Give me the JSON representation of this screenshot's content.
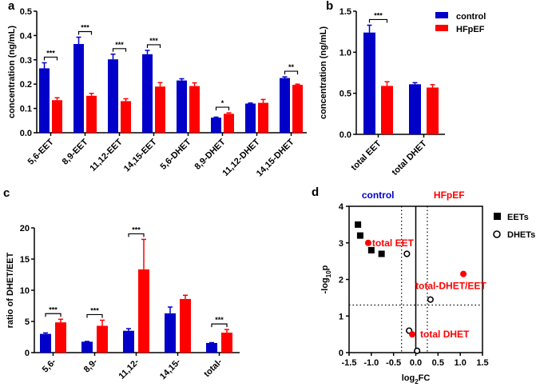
{
  "colors": {
    "control": "#0000c8",
    "HFpEF": "#ff0000",
    "EETs": "#000000",
    "DHETs": "#000000",
    "highlight": "#ff0000"
  },
  "legend": {
    "control": "control",
    "HFpEF": "HFpEF"
  },
  "chart_data": [
    {
      "id": "a",
      "panel_label": "a",
      "type": "bar",
      "ylabel": "concentration (ng/mL)",
      "ylim": [
        0,
        0.5
      ],
      "yticks": [
        "0.0",
        "0.1",
        "0.2",
        "0.3",
        "0.4",
        "0.5"
      ],
      "categories": [
        "5,6-EET",
        "8,9-EET",
        "11,12-EET",
        "14,15-EET",
        "5,6-DHET",
        "8,9-DHET",
        "11,12-DHET",
        "14,15-DHET"
      ],
      "series": [
        {
          "name": "control",
          "values": [
            0.265,
            0.365,
            0.302,
            0.323,
            0.215,
            0.062,
            0.12,
            0.225
          ],
          "errors": [
            0.023,
            0.028,
            0.021,
            0.016,
            0.007,
            0.002,
            0.002,
            0.005
          ]
        },
        {
          "name": "HFpEF",
          "values": [
            0.134,
            0.152,
            0.13,
            0.19,
            0.192,
            0.078,
            0.123,
            0.197
          ],
          "errors": [
            0.01,
            0.01,
            0.01,
            0.016,
            0.013,
            0.004,
            0.014,
            0.003
          ]
        }
      ],
      "significance": [
        "***",
        "***",
        "***",
        "***",
        "",
        "*",
        "",
        "**"
      ]
    },
    {
      "id": "b",
      "panel_label": "b",
      "type": "bar",
      "ylabel": "concentration (ng/mL)",
      "ylim": [
        0,
        1.5
      ],
      "yticks": [
        "0.0",
        "0.5",
        "1.0",
        "1.5"
      ],
      "categories": [
        "total EET",
        "total DHET"
      ],
      "series": [
        {
          "name": "control",
          "values": [
            1.24,
            0.61
          ],
          "errors": [
            0.09,
            0.02
          ]
        },
        {
          "name": "HFpEF",
          "values": [
            0.59,
            0.57
          ],
          "errors": [
            0.05,
            0.035
          ]
        }
      ],
      "significance": [
        "***",
        ""
      ]
    },
    {
      "id": "c",
      "panel_label": "c",
      "type": "bar",
      "ylabel": "ratio of DHET/EET",
      "ylim": [
        0,
        20
      ],
      "yticks": [
        "0",
        "5",
        "10",
        "15",
        "20"
      ],
      "categories": [
        "5,6-",
        "8,9-",
        "11,12-",
        "14,15-",
        "total-"
      ],
      "series": [
        {
          "name": "control",
          "values": [
            3.0,
            1.75,
            3.5,
            6.3,
            1.55
          ],
          "errors": [
            0.15,
            0.05,
            0.35,
            1.0,
            0.05
          ]
        },
        {
          "name": "HFpEF",
          "values": [
            4.85,
            4.3,
            13.35,
            8.6,
            3.2
          ],
          "errors": [
            0.5,
            0.9,
            4.8,
            0.6,
            0.5
          ]
        }
      ],
      "significance": [
        "***",
        "***",
        "***",
        "",
        "***"
      ]
    },
    {
      "id": "d",
      "panel_label": "d",
      "type": "scatter",
      "xlabel": "log2FC",
      "xlabel_base": "log",
      "xlabel_sub": "2",
      "xlabel_rest": "FC",
      "ylabel_base": "-log",
      "ylabel_sub": "10",
      "ylabel_rest": "p",
      "xlim": [
        -1.5,
        1.5
      ],
      "ylim": [
        0,
        4
      ],
      "xticks": [
        "-1.5",
        "-1.0",
        "-0.5",
        "0.0",
        "0.5",
        "1.0",
        "1.5"
      ],
      "yticks": [
        "0",
        "1",
        "2",
        "3",
        "4"
      ],
      "region_labels": {
        "left": "control",
        "right": "HFpEF"
      },
      "thresholds": {
        "x": [
          -0.32,
          0.26
        ],
        "y": 1.3
      },
      "legend": {
        "EETs": "EETs",
        "DHETs": "DHETs"
      },
      "series": [
        {
          "name": "EETs",
          "marker": "square",
          "points": [
            [
              -1.3,
              3.5
            ],
            [
              -1.25,
              3.2
            ],
            [
              -1.0,
              2.8
            ],
            [
              -0.77,
              2.7
            ]
          ]
        },
        {
          "name": "DHETs",
          "marker": "open-circle",
          "points": [
            [
              -0.2,
              2.7
            ],
            [
              0.33,
              1.45
            ],
            [
              -0.15,
              0.6
            ],
            [
              0.03,
              0.05
            ]
          ]
        },
        {
          "name": "highlighted",
          "marker": "red-circle",
          "points": [
            [
              -1.07,
              3.0
            ],
            [
              1.07,
              2.15
            ],
            [
              -0.08,
              0.5
            ]
          ],
          "labels": [
            "total EET",
            "total-DHET/EET",
            "total DHET"
          ]
        }
      ]
    }
  ]
}
